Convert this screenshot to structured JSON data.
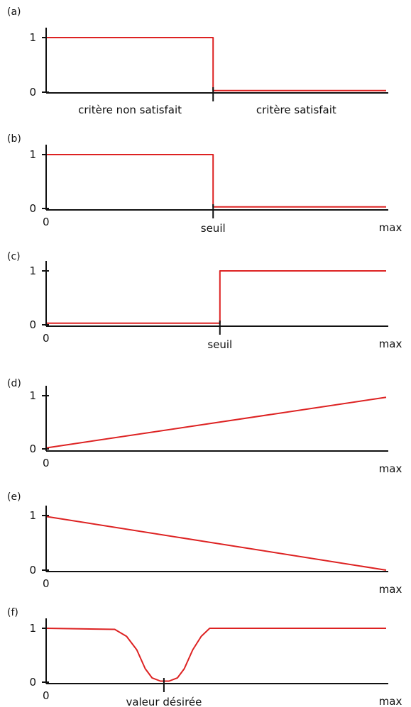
{
  "chart_data": [
    {
      "type": "line",
      "panel_label": "(a)",
      "ylim": [
        0,
        1
      ],
      "xlim": [
        0,
        1
      ],
      "yticks": [
        {
          "value": 0,
          "label": "0"
        },
        {
          "value": 1,
          "label": "1"
        }
      ],
      "x_marks": [
        {
          "x": 0.49,
          "label": ""
        }
      ],
      "x_labels": [
        {
          "x": 0.245,
          "label": "critère non satisfait"
        },
        {
          "x": 0.735,
          "label": "critère satisfait"
        }
      ],
      "series": [
        {
          "color": "#dd2222",
          "x": [
            0,
            0.49,
            0.49,
            1
          ],
          "y": [
            1,
            1,
            0.03,
            0.03
          ]
        }
      ]
    },
    {
      "type": "line",
      "panel_label": "(b)",
      "ylim": [
        0,
        1
      ],
      "xlim": [
        0,
        1
      ],
      "yticks": [
        {
          "value": 0,
          "label": "0"
        },
        {
          "value": 1,
          "label": "1"
        }
      ],
      "x_marks": [
        {
          "x": 0.49,
          "label": "seuil"
        }
      ],
      "x_labels": [
        {
          "x": 0,
          "label": "0"
        },
        {
          "x": 1,
          "label": "max"
        }
      ],
      "series": [
        {
          "color": "#dd2222",
          "x": [
            0,
            0.49,
            0.49,
            1
          ],
          "y": [
            1,
            1,
            0.03,
            0.03
          ]
        }
      ]
    },
    {
      "type": "line",
      "panel_label": "(c)",
      "ylim": [
        0,
        1
      ],
      "xlim": [
        0,
        1
      ],
      "yticks": [
        {
          "value": 0,
          "label": "0"
        },
        {
          "value": 1,
          "label": "1"
        }
      ],
      "x_marks": [
        {
          "x": 0.51,
          "label": "seuil"
        }
      ],
      "x_labels": [
        {
          "x": 0,
          "label": "0"
        },
        {
          "x": 1,
          "label": "max"
        }
      ],
      "series": [
        {
          "color": "#dd2222",
          "x": [
            0,
            0.51,
            0.51,
            1
          ],
          "y": [
            0.03,
            0.03,
            1,
            1
          ]
        }
      ]
    },
    {
      "type": "line",
      "panel_label": "(d)",
      "ylim": [
        0,
        1
      ],
      "xlim": [
        0,
        1
      ],
      "yticks": [
        {
          "value": 0,
          "label": "0"
        },
        {
          "value": 1,
          "label": "1"
        }
      ],
      "x_marks": [],
      "x_labels": [
        {
          "x": 0,
          "label": "0"
        },
        {
          "x": 1,
          "label": "max"
        }
      ],
      "series": [
        {
          "color": "#dd2222",
          "x": [
            0,
            1
          ],
          "y": [
            0.02,
            0.97
          ]
        }
      ]
    },
    {
      "type": "line",
      "panel_label": "(e)",
      "ylim": [
        0,
        1
      ],
      "xlim": [
        0,
        1
      ],
      "yticks": [
        {
          "value": 0,
          "label": "0"
        },
        {
          "value": 1,
          "label": "1"
        }
      ],
      "x_marks": [],
      "x_labels": [
        {
          "x": 0,
          "label": "0"
        },
        {
          "x": 1,
          "label": "max"
        }
      ],
      "series": [
        {
          "color": "#dd2222",
          "x": [
            0,
            1
          ],
          "y": [
            0.98,
            0.0
          ]
        }
      ]
    },
    {
      "type": "line",
      "panel_label": "(f)",
      "ylim": [
        0,
        1
      ],
      "xlim": [
        0,
        1
      ],
      "yticks": [
        {
          "value": 0,
          "label": "0"
        },
        {
          "value": 1,
          "label": "1"
        }
      ],
      "x_marks": [
        {
          "x": 0.345,
          "label": "valeur désirée"
        }
      ],
      "x_labels": [
        {
          "x": 0,
          "label": "0"
        },
        {
          "x": 1,
          "label": "max"
        }
      ],
      "series": [
        {
          "color": "#dd2222",
          "x": [
            0,
            0.2,
            0.235,
            0.265,
            0.29,
            0.31,
            0.335,
            0.36,
            0.385,
            0.405,
            0.43,
            0.455,
            0.48,
            1
          ],
          "y": [
            1,
            0.98,
            0.85,
            0.6,
            0.25,
            0.08,
            0.02,
            0.02,
            0.08,
            0.25,
            0.6,
            0.85,
            1,
            1
          ]
        }
      ]
    }
  ]
}
